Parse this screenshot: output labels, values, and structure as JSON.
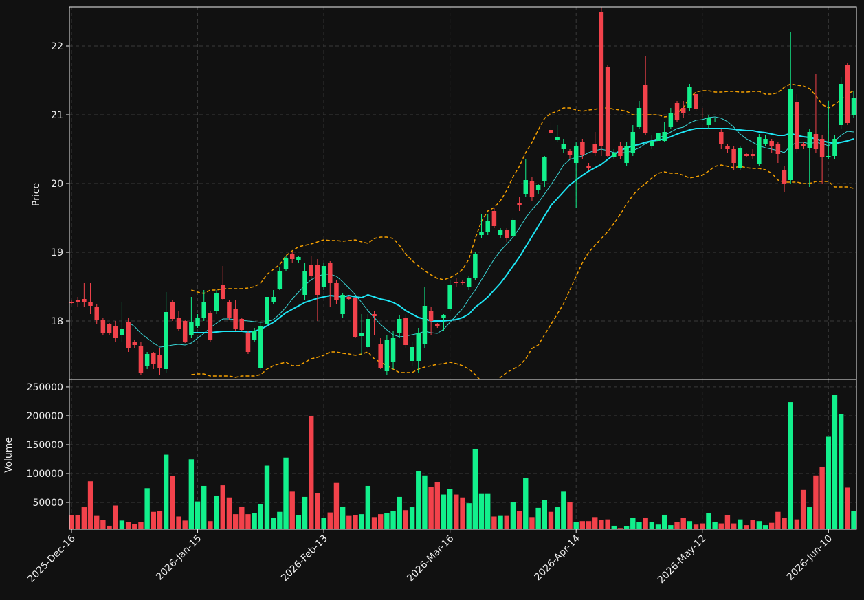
{
  "chart_data": {
    "type": "candlestick",
    "ylabel": "Price",
    "ylim": [
      17.15,
      22.57
    ],
    "yticks": [
      18,
      19,
      20,
      21,
      22
    ],
    "grid": true,
    "up_color": "#12f08c",
    "down_color": "#f2424b",
    "categories": [
      "2025-Dec-16",
      null,
      null,
      null,
      null,
      null,
      null,
      null,
      null,
      null,
      null,
      null,
      null,
      null,
      null,
      null,
      null,
      null,
      null,
      null,
      "2026-Jan-15",
      null,
      null,
      null,
      null,
      null,
      null,
      null,
      null,
      null,
      null,
      null,
      null,
      null,
      null,
      null,
      null,
      null,
      null,
      null,
      "2026-Feb-13",
      null,
      null,
      null,
      null,
      null,
      null,
      null,
      null,
      null,
      null,
      null,
      null,
      null,
      null,
      null,
      null,
      null,
      null,
      null,
      "2026-Mar-16",
      null,
      null,
      null,
      null,
      null,
      null,
      null,
      null,
      null,
      null,
      null,
      null,
      null,
      null,
      null,
      null,
      null,
      null,
      null,
      "2026-Apr-14",
      null,
      null,
      null,
      null,
      null,
      null,
      null,
      null,
      null,
      null,
      null,
      null,
      null,
      null,
      null,
      null,
      null,
      null,
      null,
      "2026-May-12",
      null,
      null,
      null,
      null,
      null,
      null,
      null,
      null,
      null,
      null,
      null,
      null,
      null,
      null,
      null,
      null,
      null,
      null,
      null,
      "2026-Jun-10",
      null,
      null,
      null,
      null
    ],
    "open": [
      18.28,
      18.3,
      18.32,
      18.28,
      18.2,
      18.02,
      17.95,
      17.92,
      17.8,
      17.98,
      17.7,
      17.63,
      17.35,
      17.53,
      17.5,
      17.3,
      18.27,
      18.05,
      18.0,
      17.8,
      17.93,
      18.05,
      18.12,
      18.15,
      18.52,
      18.27,
      18.17,
      18.03,
      17.82,
      17.72,
      17.32,
      17.95,
      18.27,
      18.47,
      18.75,
      18.97,
      18.88,
      18.38,
      18.82,
      18.82,
      18.5,
      18.85,
      18.55,
      18.1,
      18.35,
      18.33,
      17.78,
      17.62,
      18.1,
      17.67,
      17.27,
      17.4,
      17.82,
      18.05,
      17.42,
      17.42,
      17.67,
      18.15,
      17.95,
      18.05,
      18.18,
      18.57,
      18.57,
      18.5,
      18.62,
      19.25,
      19.3,
      19.6,
      19.25,
      19.32,
      19.23,
      19.72,
      19.85,
      20.03,
      19.9,
      20.03,
      20.78,
      20.63,
      20.5,
      20.47,
      20.3,
      20.6,
      20.25,
      20.57,
      22.5,
      21.7,
      20.38,
      20.55,
      20.3,
      20.45,
      20.82,
      21.43,
      20.55,
      20.62,
      20.62,
      20.82,
      21.17,
      21.1,
      21.1,
      21.3,
      21.06,
      20.85,
      20.92,
      20.75,
      20.55,
      20.5,
      20.22,
      20.43,
      20.43,
      20.28,
      20.58,
      20.62,
      20.58,
      20.2,
      20.05,
      21.18,
      20.58,
      20.52,
      20.72,
      20.65,
      20.38,
      20.4,
      20.85,
      21.72,
      21.0
    ],
    "high": [
      18.3,
      18.35,
      18.55,
      18.55,
      18.25,
      18.05,
      17.97,
      18.0,
      18.28,
      18.05,
      17.72,
      17.7,
      17.55,
      17.55,
      17.6,
      18.42,
      18.3,
      18.15,
      18.02,
      18.35,
      18.1,
      18.45,
      18.15,
      18.45,
      18.8,
      18.3,
      18.3,
      18.05,
      17.85,
      17.9,
      18.0,
      18.4,
      18.45,
      18.78,
      18.95,
      19.0,
      18.95,
      18.85,
      18.95,
      18.9,
      18.85,
      18.87,
      18.6,
      18.4,
      18.37,
      18.35,
      18.1,
      18.1,
      18.15,
      17.75,
      17.8,
      17.85,
      18.08,
      18.1,
      17.7,
      17.9,
      18.5,
      18.2,
      17.97,
      18.1,
      18.6,
      18.62,
      18.6,
      18.65,
      19.0,
      19.55,
      19.55,
      19.65,
      19.35,
      19.35,
      19.5,
      19.8,
      20.35,
      20.1,
      20.0,
      20.4,
      20.9,
      20.85,
      20.65,
      20.5,
      20.6,
      20.65,
      20.3,
      20.75,
      22.6,
      21.72,
      20.5,
      20.6,
      20.6,
      20.85,
      21.2,
      21.85,
      20.7,
      20.8,
      20.9,
      21.1,
      21.2,
      21.2,
      21.45,
      21.35,
      21.1,
      21.0,
      20.95,
      20.8,
      20.58,
      20.55,
      20.55,
      20.45,
      20.5,
      20.72,
      20.7,
      20.65,
      20.6,
      20.25,
      22.2,
      21.3,
      20.6,
      20.8,
      21.6,
      20.7,
      21.2,
      20.7,
      21.55,
      21.75,
      21.35
    ],
    "low": [
      18.25,
      18.2,
      18.2,
      18.1,
      17.95,
      17.8,
      17.8,
      17.7,
      17.7,
      17.55,
      17.6,
      17.22,
      17.3,
      17.3,
      17.22,
      17.25,
      18.0,
      17.85,
      17.68,
      17.75,
      17.9,
      18.0,
      17.7,
      18.1,
      18.3,
      18.02,
      17.85,
      17.85,
      17.52,
      17.7,
      17.28,
      17.9,
      18.25,
      18.45,
      18.72,
      18.85,
      18.85,
      18.3,
      18.6,
      18.0,
      18.45,
      18.2,
      18.25,
      18.05,
      18.3,
      17.75,
      17.5,
      17.6,
      17.8,
      17.3,
      17.22,
      17.3,
      17.75,
      17.6,
      17.35,
      17.25,
      17.6,
      17.8,
      17.9,
      17.85,
      18.15,
      18.5,
      18.52,
      18.45,
      18.6,
      19.2,
      19.25,
      19.35,
      19.2,
      19.15,
      19.2,
      19.6,
      19.8,
      19.75,
      19.85,
      19.95,
      20.7,
      20.6,
      20.45,
      20.35,
      19.65,
      20.35,
      20.2,
      20.4,
      20.4,
      20.38,
      20.35,
      20.35,
      20.25,
      20.4,
      20.8,
      20.7,
      20.5,
      20.55,
      20.6,
      20.8,
      20.9,
      20.95,
      21.05,
      21.05,
      20.95,
      20.8,
      20.9,
      20.5,
      20.45,
      20.2,
      20.2,
      20.38,
      20.35,
      20.25,
      20.55,
      20.45,
      20.3,
      19.88,
      20.0,
      20.45,
      20.5,
      19.95,
      20.45,
      20.0,
      20.35,
      20.35,
      20.8,
      20.85,
      20.95
    ],
    "close": [
      18.26,
      18.27,
      18.28,
      18.22,
      18.02,
      17.83,
      17.83,
      17.75,
      17.88,
      17.6,
      17.65,
      17.25,
      17.52,
      17.38,
      17.32,
      18.13,
      18.03,
      17.88,
      17.7,
      17.98,
      18.05,
      18.27,
      17.73,
      18.4,
      18.32,
      18.05,
      17.88,
      17.87,
      17.55,
      17.85,
      17.93,
      18.35,
      18.35,
      18.73,
      18.92,
      18.9,
      18.93,
      18.72,
      18.65,
      18.38,
      18.8,
      18.55,
      18.3,
      18.38,
      18.32,
      17.77,
      17.82,
      18.03,
      18.07,
      17.32,
      17.72,
      17.75,
      18.03,
      17.65,
      17.62,
      17.82,
      18.22,
      18.0,
      17.93,
      18.08,
      18.53,
      18.55,
      18.55,
      18.62,
      18.98,
      19.3,
      19.45,
      19.38,
      19.33,
      19.2,
      19.47,
      19.68,
      20.05,
      19.8,
      19.98,
      20.38,
      20.73,
      20.67,
      20.58,
      20.42,
      20.55,
      20.42,
      20.23,
      20.45,
      20.55,
      20.4,
      20.45,
      20.4,
      20.55,
      20.75,
      21.1,
      20.73,
      20.62,
      20.73,
      20.75,
      21.03,
      20.93,
      21.03,
      21.4,
      21.08,
      21.05,
      20.95,
      20.93,
      20.57,
      20.5,
      20.3,
      20.52,
      20.4,
      20.4,
      20.68,
      20.65,
      20.55,
      20.43,
      20.0,
      21.38,
      20.5,
      20.55,
      20.75,
      20.5,
      20.38,
      20.4,
      20.65,
      21.45,
      20.88,
      21.25
    ],
    "lines": [
      {
        "color": "#3ad6d6",
        "width": 1,
        "dashed": false,
        "values": [
          null,
          null,
          null,
          null,
          null,
          null,
          null,
          null,
          null,
          17.98,
          17.92,
          17.82,
          17.75,
          17.68,
          17.62,
          17.63,
          17.65,
          17.66,
          17.65,
          17.68,
          17.75,
          17.82,
          17.9,
          17.97,
          18.03,
          18.03,
          18.02,
          18.01,
          18.0,
          17.99,
          17.98,
          17.99,
          18.02,
          18.1,
          18.2,
          18.32,
          18.42,
          18.52,
          18.6,
          18.65,
          18.68,
          18.68,
          18.65,
          18.57,
          18.48,
          18.38,
          18.27,
          18.15,
          18.05,
          17.95,
          17.87,
          17.8,
          17.77,
          17.78,
          17.8,
          17.82,
          17.85,
          17.83,
          17.82,
          17.88,
          17.98,
          18.08,
          18.18,
          18.32,
          18.45,
          18.6,
          18.75,
          18.9,
          19.02,
          19.12,
          19.22,
          19.35,
          19.5,
          19.62,
          19.72,
          19.85,
          19.98,
          20.12,
          20.27,
          20.35,
          20.38,
          20.4,
          20.45,
          20.48,
          20.5,
          20.48,
          20.45,
          20.45,
          20.45,
          20.48,
          20.52,
          20.58,
          20.62,
          20.66,
          20.7,
          20.75,
          20.8,
          20.82,
          20.88,
          20.92,
          20.93,
          20.96,
          20.97,
          20.95,
          20.9,
          20.82,
          20.72,
          20.65,
          20.6,
          20.55,
          20.52,
          20.5,
          20.48,
          20.45,
          20.55,
          20.6,
          20.6,
          20.58,
          20.6,
          20.58,
          20.55,
          20.62,
          20.7,
          20.76,
          20.75
        ]
      },
      {
        "color": "#1ee6f5",
        "width": 2,
        "dashed": false,
        "values": [
          null,
          null,
          null,
          null,
          null,
          null,
          null,
          null,
          null,
          null,
          null,
          null,
          null,
          null,
          null,
          null,
          null,
          null,
          null,
          17.83,
          17.83,
          17.83,
          17.83,
          17.84,
          17.85,
          17.85,
          17.85,
          17.85,
          17.84,
          17.85,
          17.88,
          17.93,
          17.98,
          18.05,
          18.12,
          18.17,
          18.22,
          18.27,
          18.3,
          18.33,
          18.35,
          18.37,
          18.36,
          18.35,
          18.37,
          18.35,
          18.34,
          18.38,
          18.35,
          18.32,
          18.3,
          18.27,
          18.22,
          18.15,
          18.1,
          18.05,
          18.03,
          18.0,
          18.0,
          18.0,
          18.01,
          18.02,
          18.05,
          18.1,
          18.2,
          18.27,
          18.35,
          18.45,
          18.55,
          18.67,
          18.8,
          18.93,
          19.08,
          19.23,
          19.38,
          19.53,
          19.68,
          19.78,
          19.88,
          19.98,
          20.05,
          20.12,
          20.18,
          20.23,
          20.28,
          20.35,
          20.42,
          20.48,
          20.52,
          20.55,
          20.57,
          20.6,
          20.62,
          20.63,
          20.65,
          20.68,
          20.72,
          20.75,
          20.78,
          20.8,
          20.8,
          20.8,
          20.8,
          20.8,
          20.8,
          20.79,
          20.78,
          20.77,
          20.77,
          20.75,
          20.74,
          20.72,
          20.7,
          20.7,
          20.73,
          20.7,
          20.68,
          20.67,
          20.65,
          20.62,
          20.6,
          20.58,
          20.6,
          20.62,
          20.65
        ]
      },
      {
        "color": "#f5a000",
        "width": 1.5,
        "dashed": true,
        "values": [
          null,
          null,
          null,
          null,
          null,
          null,
          null,
          null,
          null,
          null,
          null,
          null,
          null,
          null,
          null,
          null,
          null,
          null,
          null,
          18.45,
          18.42,
          18.4,
          18.45,
          18.45,
          18.47,
          18.47,
          18.47,
          18.47,
          18.48,
          18.5,
          18.55,
          18.68,
          18.75,
          18.82,
          18.95,
          19.02,
          19.08,
          19.1,
          19.12,
          19.15,
          19.18,
          19.17,
          19.17,
          19.16,
          19.17,
          19.18,
          19.15,
          19.13,
          19.2,
          19.22,
          19.22,
          19.2,
          19.1,
          18.97,
          18.88,
          18.8,
          18.73,
          18.67,
          18.62,
          18.6,
          18.63,
          18.68,
          18.75,
          18.9,
          19.2,
          19.45,
          19.6,
          19.65,
          19.75,
          19.9,
          20.1,
          20.25,
          20.45,
          20.6,
          20.78,
          20.95,
          21.02,
          21.05,
          21.1,
          21.1,
          21.07,
          21.05,
          21.07,
          21.08,
          21.1,
          21.1,
          21.08,
          21.07,
          21.05,
          21.0,
          21.0,
          21.0,
          21.0,
          21.0,
          20.97,
          20.98,
          21.02,
          21.1,
          21.25,
          21.33,
          21.35,
          21.35,
          21.33,
          21.33,
          21.34,
          21.34,
          21.33,
          21.33,
          21.34,
          21.34,
          21.3,
          21.3,
          21.32,
          21.4,
          21.45,
          21.43,
          21.42,
          21.38,
          21.28,
          21.15,
          21.1,
          21.15,
          21.22,
          21.3,
          21.35
        ]
      },
      {
        "color": "#f5a000",
        "width": 1.5,
        "dashed": true,
        "values": [
          null,
          null,
          null,
          null,
          null,
          null,
          null,
          null,
          null,
          null,
          null,
          null,
          null,
          null,
          null,
          null,
          null,
          null,
          null,
          17.22,
          17.23,
          17.23,
          17.2,
          17.2,
          17.2,
          17.2,
          17.18,
          17.2,
          17.2,
          17.2,
          17.22,
          17.3,
          17.35,
          17.38,
          17.4,
          17.35,
          17.35,
          17.4,
          17.45,
          17.47,
          17.5,
          17.55,
          17.55,
          17.53,
          17.52,
          17.5,
          17.52,
          17.55,
          17.45,
          17.4,
          17.35,
          17.3,
          17.25,
          17.25,
          17.25,
          17.3,
          17.33,
          17.35,
          17.37,
          17.38,
          17.4,
          17.38,
          17.35,
          17.3,
          17.22,
          17.12,
          17.0,
          17.1,
          17.18,
          17.25,
          17.3,
          17.35,
          17.45,
          17.6,
          17.65,
          17.8,
          17.95,
          18.1,
          18.25,
          18.45,
          18.65,
          18.85,
          19.0,
          19.1,
          19.2,
          19.3,
          19.42,
          19.55,
          19.7,
          19.83,
          19.93,
          20.0,
          20.08,
          20.15,
          20.17,
          20.15,
          20.15,
          20.12,
          20.08,
          20.1,
          20.12,
          20.18,
          20.25,
          20.27,
          20.25,
          20.23,
          20.25,
          20.23,
          20.22,
          20.22,
          20.2,
          20.15,
          20.05,
          20.02,
          20.02,
          20.02,
          20.0,
          20.0,
          20.03,
          20.03,
          20.03,
          19.95,
          19.95,
          19.95,
          19.93
        ]
      }
    ],
    "volume": {
      "label": "Volume",
      "ylim": [
        3600,
        263000
      ],
      "yticks": [
        50000,
        100000,
        150000,
        200000,
        250000
      ],
      "values": [
        28000,
        28000,
        42000,
        87000,
        27000,
        20000,
        10000,
        45000,
        19000,
        17000,
        13000,
        17000,
        75000,
        34000,
        35000,
        133000,
        96000,
        26000,
        19000,
        125000,
        52000,
        79000,
        18000,
        62000,
        80000,
        59000,
        30000,
        43000,
        30000,
        32000,
        47000,
        114000,
        24000,
        34000,
        128000,
        69000,
        28000,
        60000,
        200000,
        67000,
        23000,
        33000,
        84000,
        43000,
        27000,
        28000,
        30000,
        79000,
        25000,
        30000,
        32000,
        35000,
        60000,
        37000,
        42000,
        104000,
        97000,
        77000,
        85000,
        64000,
        73000,
        64000,
        59000,
        49000,
        143000,
        65000,
        65000,
        26000,
        27000,
        27000,
        51000,
        36000,
        92000,
        25000,
        41000,
        54000,
        34000,
        42000,
        69000,
        51000,
        17000,
        18000,
        18000,
        25000,
        20000,
        21000,
        10000,
        6000,
        9000,
        24000,
        16000,
        24000,
        17000,
        12000,
        29000,
        11000,
        16000,
        23000,
        18000,
        12000,
        14000,
        32000,
        16000,
        14000,
        28000,
        14000,
        21000,
        11000,
        20000,
        18000,
        11000,
        15000,
        34000,
        23000,
        224000,
        21000,
        72000,
        42000,
        97000,
        112000,
        164000,
        236000,
        203000,
        76000,
        35000
      ]
    }
  }
}
